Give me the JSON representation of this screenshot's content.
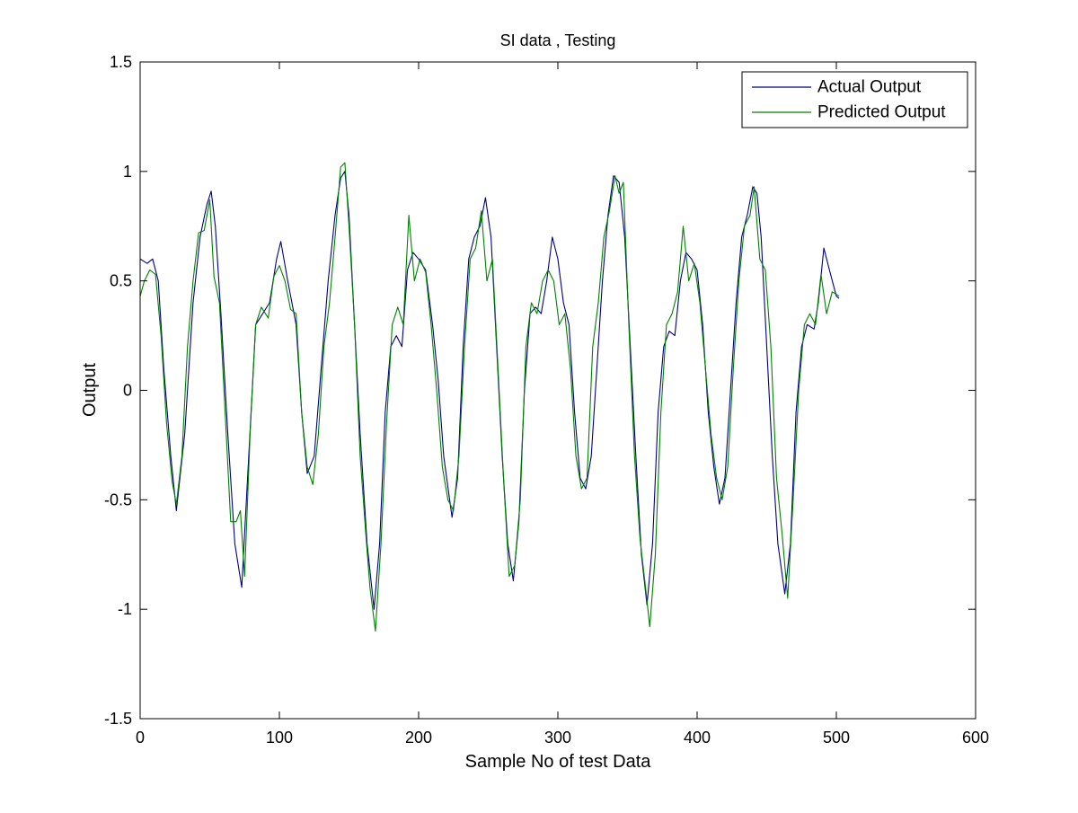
{
  "figure": {
    "background": "#ffffff"
  },
  "chart_data": {
    "type": "line",
    "title": "SI data , Testing",
    "xlabel": "Sample No of test Data",
    "ylabel": "Output",
    "xlim": [
      0,
      600
    ],
    "ylim": [
      -1.5,
      1.5
    ],
    "xticks": [
      0,
      100,
      200,
      300,
      400,
      500,
      600
    ],
    "yticks": [
      -1.5,
      -1,
      -0.5,
      0,
      0.5,
      1,
      1.5
    ],
    "xtick_labels": [
      "0",
      "100",
      "200",
      "300",
      "400",
      "500",
      "600"
    ],
    "ytick_labels": [
      "-1.5",
      "-1",
      "-0.5",
      "0",
      "0.5",
      "1",
      "1.5"
    ],
    "grid": false,
    "legend_position": "top-right",
    "series": [
      {
        "name": "Actual Output",
        "color": "#000080",
        "points": [
          [
            0,
            0.6
          ],
          [
            5,
            0.58
          ],
          [
            9,
            0.6
          ],
          [
            13,
            0.5
          ],
          [
            17,
            0.1
          ],
          [
            22,
            -0.3
          ],
          [
            26,
            -0.55
          ],
          [
            32,
            -0.2
          ],
          [
            38,
            0.4
          ],
          [
            43,
            0.7
          ],
          [
            48,
            0.85
          ],
          [
            51,
            0.91
          ],
          [
            54,
            0.75
          ],
          [
            58,
            0.35
          ],
          [
            63,
            -0.2
          ],
          [
            68,
            -0.7
          ],
          [
            73,
            -0.9
          ],
          [
            78,
            -0.3
          ],
          [
            83,
            0.3
          ],
          [
            88,
            0.35
          ],
          [
            93,
            0.4
          ],
          [
            98,
            0.6
          ],
          [
            101,
            0.68
          ],
          [
            106,
            0.5
          ],
          [
            112,
            0.3
          ],
          [
            116,
            -0.1
          ],
          [
            120,
            -0.38
          ],
          [
            125,
            -0.3
          ],
          [
            130,
            0.1
          ],
          [
            135,
            0.5
          ],
          [
            140,
            0.8
          ],
          [
            144,
            0.97
          ],
          [
            147,
            1.0
          ],
          [
            150,
            0.8
          ],
          [
            154,
            0.3
          ],
          [
            158,
            -0.2
          ],
          [
            163,
            -0.7
          ],
          [
            168,
            -1.0
          ],
          [
            172,
            -0.7
          ],
          [
            176,
            -0.1
          ],
          [
            180,
            0.2
          ],
          [
            184,
            0.25
          ],
          [
            188,
            0.2
          ],
          [
            192,
            0.55
          ],
          [
            196,
            0.63
          ],
          [
            200,
            0.6
          ],
          [
            205,
            0.55
          ],
          [
            210,
            0.3
          ],
          [
            214,
            0.05
          ],
          [
            218,
            -0.3
          ],
          [
            224,
            -0.58
          ],
          [
            228,
            -0.4
          ],
          [
            232,
            0.2
          ],
          [
            236,
            0.6
          ],
          [
            240,
            0.7
          ],
          [
            244,
            0.75
          ],
          [
            248,
            0.88
          ],
          [
            252,
            0.7
          ],
          [
            256,
            0.2
          ],
          [
            260,
            -0.3
          ],
          [
            264,
            -0.7
          ],
          [
            268,
            -0.87
          ],
          [
            272,
            -0.6
          ],
          [
            276,
            0.0
          ],
          [
            280,
            0.35
          ],
          [
            284,
            0.38
          ],
          [
            288,
            0.35
          ],
          [
            292,
            0.5
          ],
          [
            296,
            0.7
          ],
          [
            300,
            0.6
          ],
          [
            304,
            0.4
          ],
          [
            308,
            0.3
          ],
          [
            312,
            -0.1
          ],
          [
            316,
            -0.4
          ],
          [
            320,
            -0.45
          ],
          [
            324,
            -0.3
          ],
          [
            328,
            0.1
          ],
          [
            332,
            0.5
          ],
          [
            336,
            0.8
          ],
          [
            340,
            0.98
          ],
          [
            344,
            0.95
          ],
          [
            348,
            0.7
          ],
          [
            352,
            0.2
          ],
          [
            356,
            -0.3
          ],
          [
            360,
            -0.75
          ],
          [
            364,
            -0.98
          ],
          [
            368,
            -0.7
          ],
          [
            372,
            -0.1
          ],
          [
            376,
            0.2
          ],
          [
            380,
            0.27
          ],
          [
            384,
            0.25
          ],
          [
            388,
            0.5
          ],
          [
            392,
            0.63
          ],
          [
            396,
            0.6
          ],
          [
            400,
            0.55
          ],
          [
            404,
            0.3
          ],
          [
            408,
            -0.1
          ],
          [
            412,
            -0.35
          ],
          [
            416,
            -0.52
          ],
          [
            420,
            -0.4
          ],
          [
            424,
            0.0
          ],
          [
            428,
            0.4
          ],
          [
            432,
            0.7
          ],
          [
            436,
            0.8
          ],
          [
            440,
            0.93
          ],
          [
            443,
            0.9
          ],
          [
            446,
            0.7
          ],
          [
            450,
            0.2
          ],
          [
            454,
            -0.3
          ],
          [
            458,
            -0.7
          ],
          [
            463,
            -0.93
          ],
          [
            467,
            -0.7
          ],
          [
            471,
            -0.1
          ],
          [
            475,
            0.2
          ],
          [
            479,
            0.3
          ],
          [
            484,
            0.28
          ],
          [
            487,
            0.4
          ],
          [
            491,
            0.65
          ],
          [
            495,
            0.55
          ],
          [
            500,
            0.43
          ],
          [
            502,
            0.42
          ]
        ]
      },
      {
        "name": "Predicted Output",
        "color": "#008000",
        "points": [
          [
            0,
            0.43
          ],
          [
            3,
            0.5
          ],
          [
            7,
            0.55
          ],
          [
            11,
            0.53
          ],
          [
            15,
            0.25
          ],
          [
            19,
            -0.15
          ],
          [
            23,
            -0.42
          ],
          [
            26,
            -0.52
          ],
          [
            30,
            -0.3
          ],
          [
            34,
            0.2
          ],
          [
            38,
            0.5
          ],
          [
            42,
            0.72
          ],
          [
            46,
            0.73
          ],
          [
            50,
            0.87
          ],
          [
            53,
            0.52
          ],
          [
            57,
            0.4
          ],
          [
            61,
            -0.1
          ],
          [
            65,
            -0.6
          ],
          [
            69,
            -0.6
          ],
          [
            72,
            -0.55
          ],
          [
            75,
            -0.85
          ],
          [
            79,
            -0.2
          ],
          [
            83,
            0.3
          ],
          [
            87,
            0.38
          ],
          [
            92,
            0.33
          ],
          [
            96,
            0.52
          ],
          [
            100,
            0.57
          ],
          [
            104,
            0.5
          ],
          [
            108,
            0.37
          ],
          [
            112,
            0.35
          ],
          [
            116,
            -0.1
          ],
          [
            120,
            -0.35
          ],
          [
            124,
            -0.43
          ],
          [
            128,
            -0.2
          ],
          [
            132,
            0.2
          ],
          [
            136,
            0.4
          ],
          [
            140,
            0.7
          ],
          [
            144,
            1.02
          ],
          [
            147,
            1.04
          ],
          [
            150,
            0.75
          ],
          [
            154,
            0.3
          ],
          [
            158,
            -0.3
          ],
          [
            162,
            -0.65
          ],
          [
            165,
            -0.9
          ],
          [
            169,
            -1.1
          ],
          [
            173,
            -0.7
          ],
          [
            177,
            -0.15
          ],
          [
            181,
            0.3
          ],
          [
            185,
            0.38
          ],
          [
            189,
            0.3
          ],
          [
            193,
            0.8
          ],
          [
            197,
            0.5
          ],
          [
            201,
            0.6
          ],
          [
            205,
            0.54
          ],
          [
            209,
            0.3
          ],
          [
            213,
            0.0
          ],
          [
            217,
            -0.35
          ],
          [
            221,
            -0.5
          ],
          [
            225,
            -0.55
          ],
          [
            229,
            -0.3
          ],
          [
            233,
            0.2
          ],
          [
            237,
            0.6
          ],
          [
            241,
            0.65
          ],
          [
            245,
            0.82
          ],
          [
            249,
            0.5
          ],
          [
            253,
            0.6
          ],
          [
            257,
            0.1
          ],
          [
            261,
            -0.4
          ],
          [
            265,
            -0.85
          ],
          [
            269,
            -0.8
          ],
          [
            273,
            -0.5
          ],
          [
            277,
            0.2
          ],
          [
            281,
            0.4
          ],
          [
            285,
            0.35
          ],
          [
            289,
            0.5
          ],
          [
            293,
            0.55
          ],
          [
            297,
            0.5
          ],
          [
            301,
            0.3
          ],
          [
            305,
            0.35
          ],
          [
            309,
            0.1
          ],
          [
            313,
            -0.3
          ],
          [
            317,
            -0.45
          ],
          [
            321,
            -0.4
          ],
          [
            325,
            0.2
          ],
          [
            329,
            0.4
          ],
          [
            333,
            0.7
          ],
          [
            337,
            0.82
          ],
          [
            341,
            0.98
          ],
          [
            344,
            0.9
          ],
          [
            347,
            0.95
          ],
          [
            351,
            0.3
          ],
          [
            355,
            -0.3
          ],
          [
            359,
            -0.68
          ],
          [
            363,
            -0.9
          ],
          [
            366,
            -1.08
          ],
          [
            370,
            -0.75
          ],
          [
            374,
            -0.1
          ],
          [
            378,
            0.3
          ],
          [
            382,
            0.35
          ],
          [
            386,
            0.45
          ],
          [
            390,
            0.75
          ],
          [
            394,
            0.5
          ],
          [
            398,
            0.58
          ],
          [
            402,
            0.4
          ],
          [
            406,
            0.1
          ],
          [
            410,
            -0.2
          ],
          [
            414,
            -0.4
          ],
          [
            418,
            -0.5
          ],
          [
            422,
            -0.35
          ],
          [
            426,
            0.1
          ],
          [
            430,
            0.5
          ],
          [
            434,
            0.75
          ],
          [
            438,
            0.8
          ],
          [
            441,
            0.93
          ],
          [
            445,
            0.6
          ],
          [
            449,
            0.55
          ],
          [
            453,
            0.2
          ],
          [
            457,
            -0.4
          ],
          [
            461,
            -0.65
          ],
          [
            465,
            -0.95
          ],
          [
            469,
            -0.5
          ],
          [
            473,
            0.0
          ],
          [
            477,
            0.3
          ],
          [
            481,
            0.35
          ],
          [
            485,
            0.3
          ],
          [
            489,
            0.53
          ],
          [
            493,
            0.35
          ],
          [
            497,
            0.45
          ],
          [
            502,
            0.43
          ]
        ]
      }
    ]
  }
}
